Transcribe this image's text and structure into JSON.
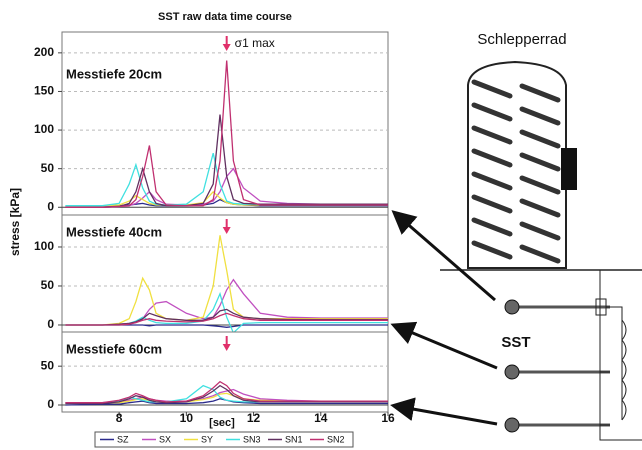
{
  "chart_data": [
    {
      "type": "line",
      "title": "SST raw data time course",
      "ylabel": "stress [kPa]",
      "label": "Messtiefe 20cm",
      "annotations": [
        {
          "text": "σ1 max",
          "x": 11.2
        }
      ],
      "x": [
        6.4,
        7.5,
        8.0,
        8.3,
        8.5,
        8.7,
        8.9,
        9.1,
        9.4,
        10.0,
        10.5,
        10.8,
        11.0,
        11.2,
        11.4,
        11.7,
        12.2,
        13,
        14,
        15,
        16
      ],
      "xlim": [
        6.3,
        16
      ],
      "ylim": [
        -10,
        227
      ],
      "yticks": [
        0,
        50,
        100,
        150,
        200
      ],
      "grid": true,
      "series": [
        {
          "name": "SZ",
          "color": "#2b2b8c",
          "values": [
            0,
            1,
            2,
            3,
            4,
            5,
            3,
            2,
            2,
            2,
            3,
            5,
            10,
            6,
            4,
            3,
            2,
            2,
            2,
            2,
            2
          ]
        },
        {
          "name": "SX",
          "color": "#c050c0",
          "values": [
            0,
            0,
            1,
            2,
            5,
            12,
            20,
            10,
            4,
            3,
            4,
            8,
            20,
            40,
            50,
            25,
            8,
            5,
            4,
            4,
            4
          ]
        },
        {
          "name": "SY",
          "color": "#f0e040",
          "values": [
            2,
            2,
            3,
            8,
            15,
            10,
            5,
            3,
            3,
            3,
            6,
            20,
            12,
            6,
            4,
            3,
            3,
            3,
            3,
            3,
            3
          ]
        },
        {
          "name": "SN3",
          "color": "#40e0e0",
          "values": [
            2,
            2,
            5,
            30,
            55,
            25,
            8,
            4,
            3,
            4,
            20,
            70,
            30,
            8,
            5,
            4,
            4,
            4,
            4,
            4,
            4
          ]
        },
        {
          "name": "SN1",
          "color": "#603060",
          "values": [
            0,
            0,
            1,
            5,
            20,
            50,
            20,
            5,
            2,
            2,
            5,
            30,
            120,
            40,
            10,
            5,
            4,
            4,
            4,
            4,
            4
          ]
        },
        {
          "name": "SN2",
          "color": "#c03070",
          "values": [
            0,
            0,
            1,
            2,
            10,
            40,
            80,
            20,
            3,
            2,
            2,
            10,
            60,
            190,
            60,
            10,
            3,
            3,
            3,
            3,
            3
          ]
        }
      ]
    },
    {
      "type": "line",
      "label": "Messtiefe 40cm",
      "x": [
        6.4,
        7.5,
        8.0,
        8.3,
        8.5,
        8.7,
        8.9,
        9.1,
        9.4,
        10.0,
        10.5,
        10.8,
        11.0,
        11.2,
        11.4,
        11.7,
        12.2,
        13,
        14,
        15,
        16
      ],
      "xlim": [
        6.3,
        16
      ],
      "ylim": [
        -9,
        141
      ],
      "yticks": [
        0,
        50,
        100
      ],
      "grid": true,
      "series": [
        {
          "color": "#2b2b8c",
          "values": [
            0,
            0,
            0,
            0,
            0,
            0,
            -1,
            0,
            0,
            0,
            0,
            -1,
            -2,
            -3,
            -2,
            0,
            0,
            0,
            0,
            0,
            0
          ]
        },
        {
          "color": "#c050c0",
          "values": [
            0,
            0,
            1,
            2,
            3,
            8,
            20,
            28,
            30,
            15,
            8,
            10,
            25,
            45,
            58,
            40,
            15,
            10,
            9,
            9,
            9
          ]
        },
        {
          "color": "#f0e040",
          "values": [
            0,
            0,
            2,
            8,
            30,
            60,
            45,
            15,
            8,
            6,
            10,
            50,
            115,
            70,
            20,
            10,
            8,
            8,
            8,
            8,
            8
          ]
        },
        {
          "color": "#40e0e0",
          "values": [
            0,
            0,
            0,
            2,
            5,
            10,
            6,
            3,
            2,
            2,
            5,
            20,
            40,
            10,
            -10,
            2,
            3,
            3,
            3,
            3,
            3
          ]
        },
        {
          "color": "#603060",
          "values": [
            0,
            0,
            1,
            2,
            4,
            8,
            15,
            12,
            8,
            6,
            6,
            10,
            18,
            20,
            15,
            10,
            8,
            7,
            7,
            7,
            7
          ]
        },
        {
          "color": "#c03070",
          "values": [
            0,
            0,
            0,
            1,
            3,
            6,
            8,
            6,
            5,
            4,
            5,
            8,
            12,
            15,
            12,
            8,
            6,
            6,
            6,
            6,
            6
          ]
        }
      ]
    },
    {
      "type": "line",
      "label": "Messtiefe 60cm",
      "xlabel": "[sec]",
      "x": [
        6.4,
        7.5,
        8.0,
        8.3,
        8.5,
        8.7,
        8.9,
        9.1,
        9.4,
        10.0,
        10.5,
        10.8,
        11.0,
        11.2,
        11.4,
        11.7,
        12.2,
        13,
        14,
        15,
        16
      ],
      "xlim": [
        6.3,
        16
      ],
      "xticks": [
        8,
        10,
        12,
        14,
        16
      ],
      "ylim": [
        -9,
        94
      ],
      "yticks": [
        0,
        50
      ],
      "grid": true,
      "series": [
        {
          "color": "#2b2b8c",
          "values": [
            0,
            1,
            1,
            3,
            4,
            5,
            3,
            2,
            2,
            2,
            3,
            5,
            8,
            6,
            4,
            3,
            2,
            2,
            2,
            2,
            2
          ]
        },
        {
          "color": "#c050c0",
          "values": [
            3,
            3,
            4,
            6,
            8,
            10,
            8,
            6,
            5,
            5,
            8,
            12,
            16,
            18,
            20,
            14,
            8,
            6,
            5,
            5,
            5
          ]
        },
        {
          "color": "#f0e040",
          "values": [
            2,
            3,
            3,
            5,
            7,
            8,
            6,
            5,
            4,
            4,
            7,
            10,
            14,
            15,
            12,
            8,
            6,
            5,
            5,
            5,
            5
          ]
        },
        {
          "color": "#40e0e0",
          "values": [
            3,
            3,
            5,
            10,
            8,
            6,
            4,
            4,
            4,
            8,
            25,
            20,
            10,
            6,
            5,
            4,
            4,
            4,
            4,
            4,
            4
          ]
        },
        {
          "color": "#603060",
          "values": [
            2,
            2,
            4,
            8,
            12,
            10,
            6,
            4,
            3,
            4,
            10,
            18,
            25,
            20,
            12,
            6,
            4,
            4,
            4,
            4,
            4
          ]
        },
        {
          "color": "#c03070",
          "values": [
            3,
            3,
            6,
            10,
            15,
            12,
            8,
            6,
            4,
            5,
            12,
            22,
            30,
            25,
            15,
            8,
            5,
            5,
            5,
            5,
            5
          ]
        }
      ]
    }
  ],
  "diagram": {
    "label": "Schlepperrad",
    "sensor_label": "SST"
  }
}
